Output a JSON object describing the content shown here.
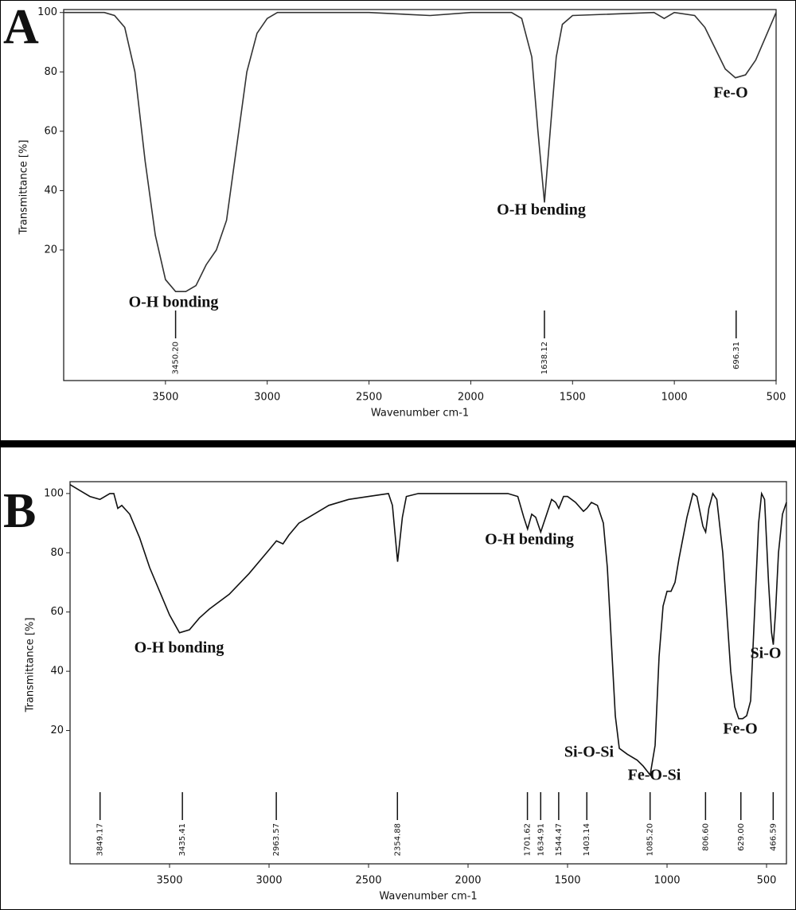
{
  "chart_data": [
    {
      "type": "line",
      "panel": "A",
      "xlabel": "Wavenumber cm-1",
      "ylabel": "Transmittance [%]",
      "color": "#333333",
      "xlim": [
        4000,
        500
      ],
      "xticks": [
        3500,
        3000,
        2500,
        2000,
        1500,
        1000,
        500
      ],
      "ylim": [
        -24,
        101
      ],
      "yticks": [
        20,
        40,
        60,
        80,
        100
      ],
      "x": [
        4000,
        3800,
        3750,
        3700,
        3650,
        3600,
        3550,
        3500,
        3450,
        3400,
        3350,
        3300,
        3250,
        3200,
        3150,
        3100,
        3050,
        3000,
        2950,
        2500,
        2200,
        2000,
        1800,
        1750,
        1700,
        1670,
        1638,
        1610,
        1580,
        1550,
        1500,
        1100,
        1050,
        1000,
        900,
        850,
        800,
        750,
        700,
        650,
        600,
        550,
        500
      ],
      "values": [
        100,
        100,
        99,
        95,
        80,
        50,
        25,
        10,
        6,
        6,
        8,
        15,
        20,
        30,
        55,
        80,
        93,
        98,
        100,
        100,
        99,
        100,
        100,
        98,
        85,
        60,
        36,
        60,
        85,
        96,
        99,
        100,
        98,
        100,
        99,
        95,
        88,
        81,
        78,
        79,
        84,
        92,
        100
      ],
      "peaks": [
        {
          "value": 3450.2,
          "label": "3450.20"
        },
        1638.12,
        696.31
      ],
      "annotations": [
        "O-H bonding",
        "O-H bending",
        "Fe-O"
      ]
    },
    {
      "type": "line",
      "panel": "B",
      "xlabel": "Wavenumber cm-1",
      "ylabel": "Transmittance [%]",
      "color": "#111111",
      "xlim": [
        4000,
        400
      ],
      "xticks": [
        3500,
        3000,
        2500,
        2000,
        1500,
        1000,
        500
      ],
      "ylim": [
        -25,
        104
      ],
      "yticks": [
        20,
        40,
        60,
        80,
        100
      ],
      "x": [
        4000,
        3950,
        3900,
        3850,
        3800,
        3780,
        3760,
        3740,
        3700,
        3650,
        3600,
        3550,
        3500,
        3450,
        3400,
        3350,
        3300,
        3200,
        3100,
        3000,
        2963,
        2930,
        2900,
        2850,
        2800,
        2700,
        2600,
        2500,
        2400,
        2380,
        2354,
        2330,
        2310,
        2250,
        1800,
        1750,
        1720,
        1701,
        1680,
        1660,
        1635,
        1610,
        1580,
        1560,
        1544,
        1520,
        1500,
        1460,
        1420,
        1403,
        1380,
        1350,
        1320,
        1300,
        1280,
        1260,
        1240,
        1200,
        1150,
        1120,
        1085,
        1060,
        1040,
        1020,
        1000,
        980,
        960,
        940,
        900,
        870,
        850,
        820,
        806,
        790,
        770,
        750,
        720,
        700,
        680,
        660,
        640,
        620,
        600,
        580,
        560,
        540,
        525,
        510,
        490,
        475,
        466,
        455,
        440,
        420,
        400
      ],
      "values": [
        103,
        101,
        99,
        98,
        100,
        100,
        95,
        96,
        93,
        85,
        75,
        67,
        59,
        53,
        54,
        58,
        61,
        66,
        73,
        81,
        84,
        83,
        86,
        90,
        92,
        96,
        98,
        99,
        100,
        96,
        77,
        92,
        99,
        100,
        100,
        99,
        92,
        88,
        93,
        92,
        87,
        92,
        98,
        97,
        95,
        99,
        99,
        97,
        94,
        95,
        97,
        96,
        90,
        75,
        50,
        25,
        14,
        12,
        10,
        8,
        5,
        15,
        45,
        62,
        67,
        67,
        70,
        78,
        92,
        100,
        99,
        89,
        87,
        95,
        100,
        98,
        80,
        60,
        40,
        28,
        24,
        24,
        25,
        30,
        60,
        90,
        100,
        98,
        70,
        53,
        49,
        60,
        80,
        93,
        97
      ],
      "peaks": [
        3849.17,
        3435.41,
        2963.57,
        2354.88,
        1701.62,
        1634.91,
        1544.47,
        1403.14,
        {
          "value": 1085.2,
          "label": "1085.20"
        },
        {
          "value": 806.6,
          "label": "806.60"
        },
        {
          "value": 629,
          "label": "629.00"
        },
        466.59
      ],
      "annotations": [
        "O-H bonding",
        "O-H bending",
        "Si-O-Si",
        "Fe-O-Si",
        "Fe-O",
        "Si-O"
      ]
    }
  ]
}
